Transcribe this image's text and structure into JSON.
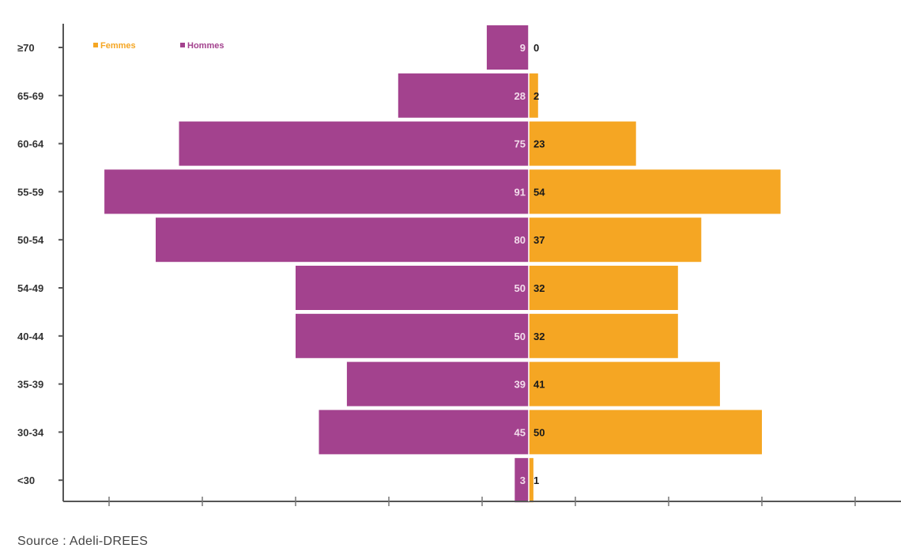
{
  "chart_data": {
    "type": "bar",
    "orientation": "horizontal-population-pyramid",
    "categories": [
      "≥70",
      "65-69",
      "60-64",
      "55-59",
      "50-54",
      "54-49",
      "40-44",
      "35-39",
      "30-34",
      "<30"
    ],
    "series": [
      {
        "name": "Femmes",
        "color": "#F5A623",
        "side": "right",
        "values": [
          0,
          2,
          23,
          54,
          37,
          32,
          32,
          41,
          50,
          1
        ]
      },
      {
        "name": "Hommes",
        "color": "#A3428E",
        "side": "left",
        "values": [
          9,
          28,
          75,
          91,
          80,
          50,
          50,
          39,
          45,
          3
        ]
      }
    ],
    "title": "",
    "xlabel": "",
    "ylabel": "",
    "xlim": [
      -100,
      80
    ],
    "grid": false,
    "legend_position": "top-left"
  },
  "source_text": "Source : Adeli-DREES"
}
